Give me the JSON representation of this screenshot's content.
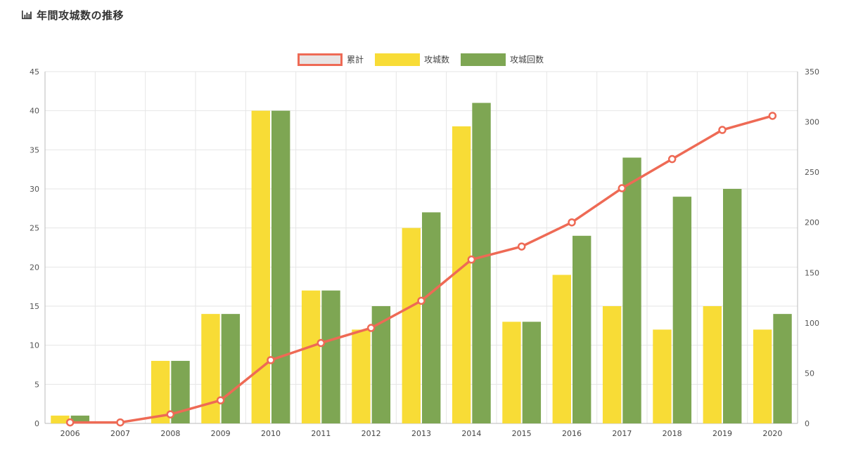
{
  "header": {
    "title": "年間攻城数の推移",
    "icon": "bar-chart-icon"
  },
  "chart_data": {
    "type": "bar",
    "categories": [
      "2006",
      "2007",
      "2008",
      "2009",
      "2010",
      "2011",
      "2012",
      "2013",
      "2014",
      "2015",
      "2016",
      "2017",
      "2018",
      "2019",
      "2020"
    ],
    "series": [
      {
        "name": "累計",
        "type": "line",
        "axis": "right",
        "color": "#ee6a55",
        "values": [
          1,
          1,
          9,
          23,
          63,
          80,
          95,
          122,
          163,
          176,
          200,
          234,
          263,
          292,
          306
        ]
      },
      {
        "name": "攻城数",
        "type": "bar",
        "axis": "left",
        "color": "#f8dc36",
        "values": [
          1,
          0,
          8,
          14,
          40,
          17,
          12,
          25,
          38,
          13,
          19,
          15,
          12,
          15,
          12
        ]
      },
      {
        "name": "攻城回数",
        "type": "bar",
        "axis": "left",
        "color": "#7ea653",
        "values": [
          1,
          0,
          8,
          14,
          40,
          17,
          15,
          27,
          41,
          13,
          24,
          34,
          29,
          30,
          14
        ]
      }
    ],
    "ylim_left": [
      0,
      45
    ],
    "yticks_left": [
      "0",
      "5",
      "10",
      "15",
      "20",
      "25",
      "30",
      "35",
      "40",
      "45"
    ],
    "ylim_right": [
      0,
      350
    ],
    "yticks_right": [
      "0",
      "50",
      "100",
      "150",
      "200",
      "250",
      "300",
      "350"
    ],
    "grid": true,
    "legend_position": "top-center"
  }
}
